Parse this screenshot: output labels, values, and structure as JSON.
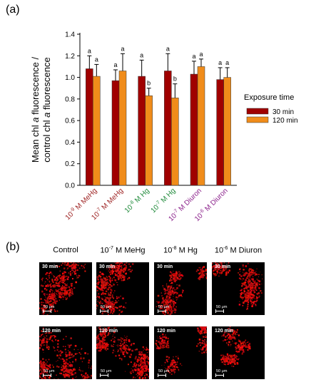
{
  "panel_a_label": "(a)",
  "panel_b_label": "(b)",
  "chart_data": {
    "type": "bar",
    "ylabel": "Mean chl a fluorescence / control chl a fluorescence",
    "ylim": [
      0.0,
      1.4
    ],
    "yticks": [
      "0.0",
      "0.2",
      "0.4",
      "0.6",
      "0.8",
      "1.0",
      "1.2",
      "1.4"
    ],
    "categories": [
      {
        "conc_base": "10",
        "conc_exp": "-9",
        "unit": "M MeHg",
        "color": "#9b1c1c"
      },
      {
        "conc_base": "10",
        "conc_exp": "-7",
        "unit": "M MeHg",
        "color": "#9b1c1c"
      },
      {
        "conc_base": "10",
        "conc_exp": "-8",
        "unit": "M Hg",
        "color": "#1f8a3a"
      },
      {
        "conc_base": "10",
        "conc_exp": "-7",
        "unit": "M Hg",
        "color": "#1f8a3a"
      },
      {
        "conc_base": "10",
        "conc_exp": "-7",
        "unit": "M Diuron",
        "color": "#8a1f8a"
      },
      {
        "conc_base": "10",
        "conc_exp": "-6",
        "unit": "M Diuron",
        "color": "#8a1f8a"
      }
    ],
    "series": [
      {
        "name": "30 min",
        "color": "#a00000",
        "values": [
          1.08,
          0.97,
          1.01,
          1.06,
          1.03,
          0.98
        ],
        "errors": [
          0.12,
          0.1,
          0.15,
          0.16,
          0.12,
          0.11
        ],
        "letters": [
          "a",
          "a",
          "a",
          "a",
          "a",
          "a"
        ]
      },
      {
        "name": "120 min",
        "color": "#f08c1a",
        "values": [
          1.01,
          1.06,
          0.83,
          0.81,
          1.1,
          1.0
        ],
        "errors": [
          0.11,
          0.16,
          0.07,
          0.13,
          0.07,
          0.09
        ],
        "letters": [
          "a",
          "a",
          "b",
          "b",
          "a",
          "a"
        ]
      }
    ],
    "legend": {
      "title": "Exposure time",
      "placement": "right"
    }
  },
  "micrographs": {
    "columns": [
      {
        "label": "Control"
      },
      {
        "label_base": "10",
        "label_exp": "-7",
        "label_rest": " M MeHg"
      },
      {
        "label_base": "10",
        "label_exp": "-8",
        "label_rest": " M Hg"
      },
      {
        "label_base": "10",
        "label_exp": "-6",
        "label_rest": " M Diuron"
      }
    ],
    "row_times": [
      "30 min",
      "120 min"
    ],
    "scale_label": "50 μm",
    "density": [
      [
        0.85,
        0.75,
        0.55,
        0.7
      ],
      [
        0.8,
        0.85,
        0.35,
        0.35
      ]
    ]
  }
}
